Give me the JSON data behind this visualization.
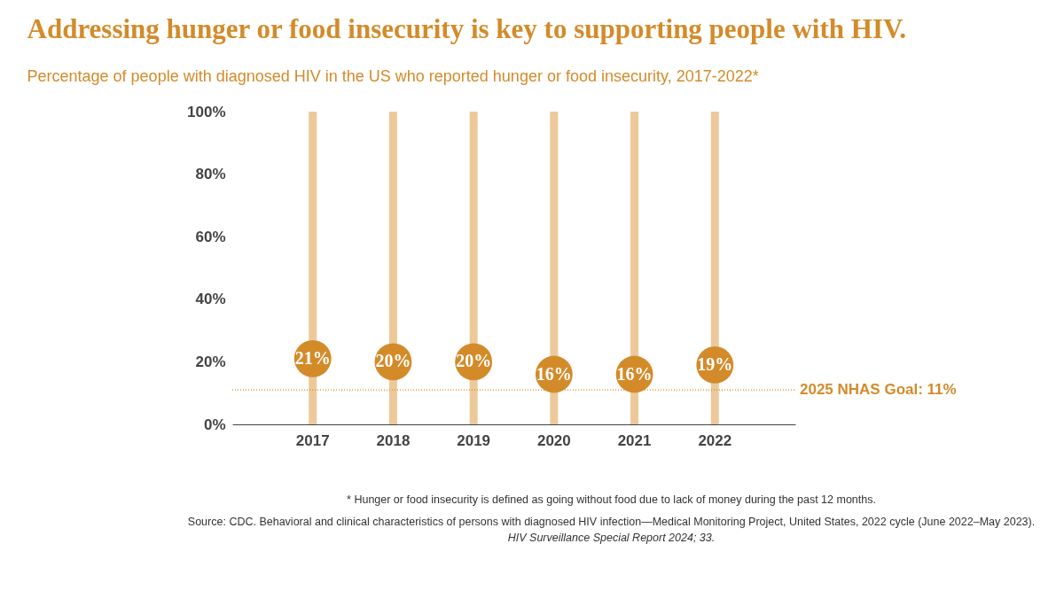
{
  "chart_data": {
    "type": "scatter",
    "title": "Addressing hunger or food insecurity is key to supporting people with HIV.",
    "subtitle": "Percentage of people with diagnosed HIV in the US who reported hunger or food insecurity, 2017-2022*",
    "categories": [
      "2017",
      "2018",
      "2019",
      "2020",
      "2021",
      "2022"
    ],
    "series": [
      {
        "type": "bar",
        "color": "#edc99a",
        "values": [
          100,
          100,
          100,
          100,
          100,
          100
        ]
      },
      {
        "type": "scatter",
        "color": "#d38b2a",
        "values": [
          21,
          20,
          20,
          16,
          16,
          19
        ],
        "value_labels": [
          "21%",
          "20%",
          "20%",
          "16%",
          "16%",
          "19%"
        ]
      }
    ],
    "ylim": [
      0,
      100
    ],
    "yticks": [
      {
        "value": 0,
        "label": "0%"
      },
      {
        "value": 20,
        "label": "20%"
      },
      {
        "value": 40,
        "label": "40%"
      },
      {
        "value": 60,
        "label": "60%"
      },
      {
        "value": 80,
        "label": "80%"
      },
      {
        "value": 100,
        "label": "100%"
      }
    ],
    "grid": false,
    "marker": "circle",
    "ref_lines": [
      {
        "axis": "y",
        "value": 11,
        "label": "2025 NHAS Goal: 11%",
        "color": "#d38b2a",
        "line_style": "dotted"
      }
    ],
    "annotations": [
      "* Hunger or food insecurity is defined as going without food due to lack of money during the past 12 months.",
      "Source: CDC. Behavioral and clinical characteristics of persons with diagnosed HIV infection—Medical Monitoring Project, United States, 2022 cycle (June 2022–May 2023).",
      "HIV Surveillance Special Report 2024; 33."
    ]
  }
}
